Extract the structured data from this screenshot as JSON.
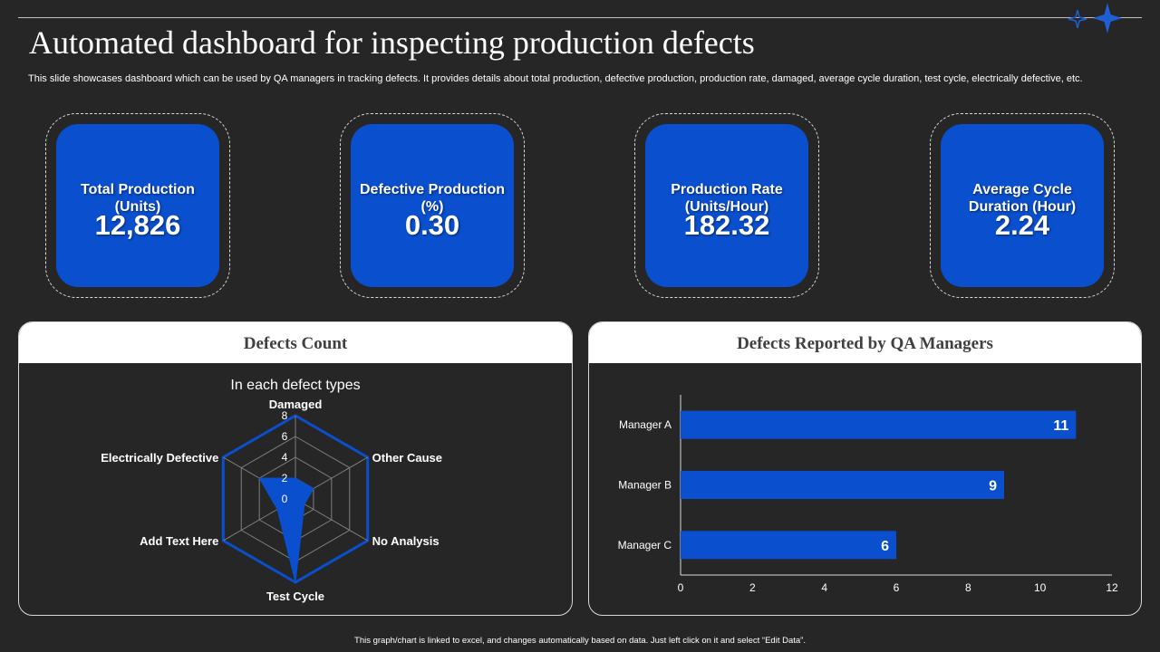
{
  "title": "Automated dashboard for inspecting production defects",
  "subtitle": "This slide showcases dashboard which can be used by QA  managers in tracking defects. It provides details about total production, defective production, production rate, damaged, average cycle duration, test cycle, electrically defective,  etc.",
  "kpis": [
    {
      "label": "Total Production (Units)",
      "value": "12,826"
    },
    {
      "label": "Defective Production (%)",
      "value": "0.30"
    },
    {
      "label": "Production Rate (Units/Hour)",
      "value": "182.32"
    },
    {
      "label": "Average Cycle Duration (Hour)",
      "value": "2.24"
    }
  ],
  "panels": {
    "defects_count": {
      "heading": "Defects Count"
    },
    "qa_managers": {
      "heading": "Defects Reported by QA Managers"
    }
  },
  "footer": "This graph/chart is linked to excel, and changes automatically based on data. Just left click on it and select “Edit Data”.",
  "colors": {
    "accent": "#0a4fcd",
    "background": "#262626"
  },
  "chart_data": [
    {
      "type": "radar",
      "title": "In each defect types",
      "categories": [
        "Damaged",
        "Other Cause",
        "No Analysis",
        "Test Cycle",
        "Add Text Here",
        "Electrically Defective"
      ],
      "series": [
        {
          "values": [
            2,
            2,
            1,
            8,
            2,
            4
          ]
        }
      ],
      "ticks": [
        0,
        2,
        4,
        6,
        8
      ],
      "range": [
        0,
        8
      ]
    },
    {
      "type": "bar",
      "orientation": "horizontal",
      "categories": [
        "Manager A",
        "Manager B",
        "Manager C"
      ],
      "values": [
        11,
        9,
        6
      ],
      "xlim": [
        0,
        12
      ],
      "xticks": [
        0,
        2,
        4,
        6,
        8,
        10,
        12
      ],
      "data_labels": true
    }
  ]
}
